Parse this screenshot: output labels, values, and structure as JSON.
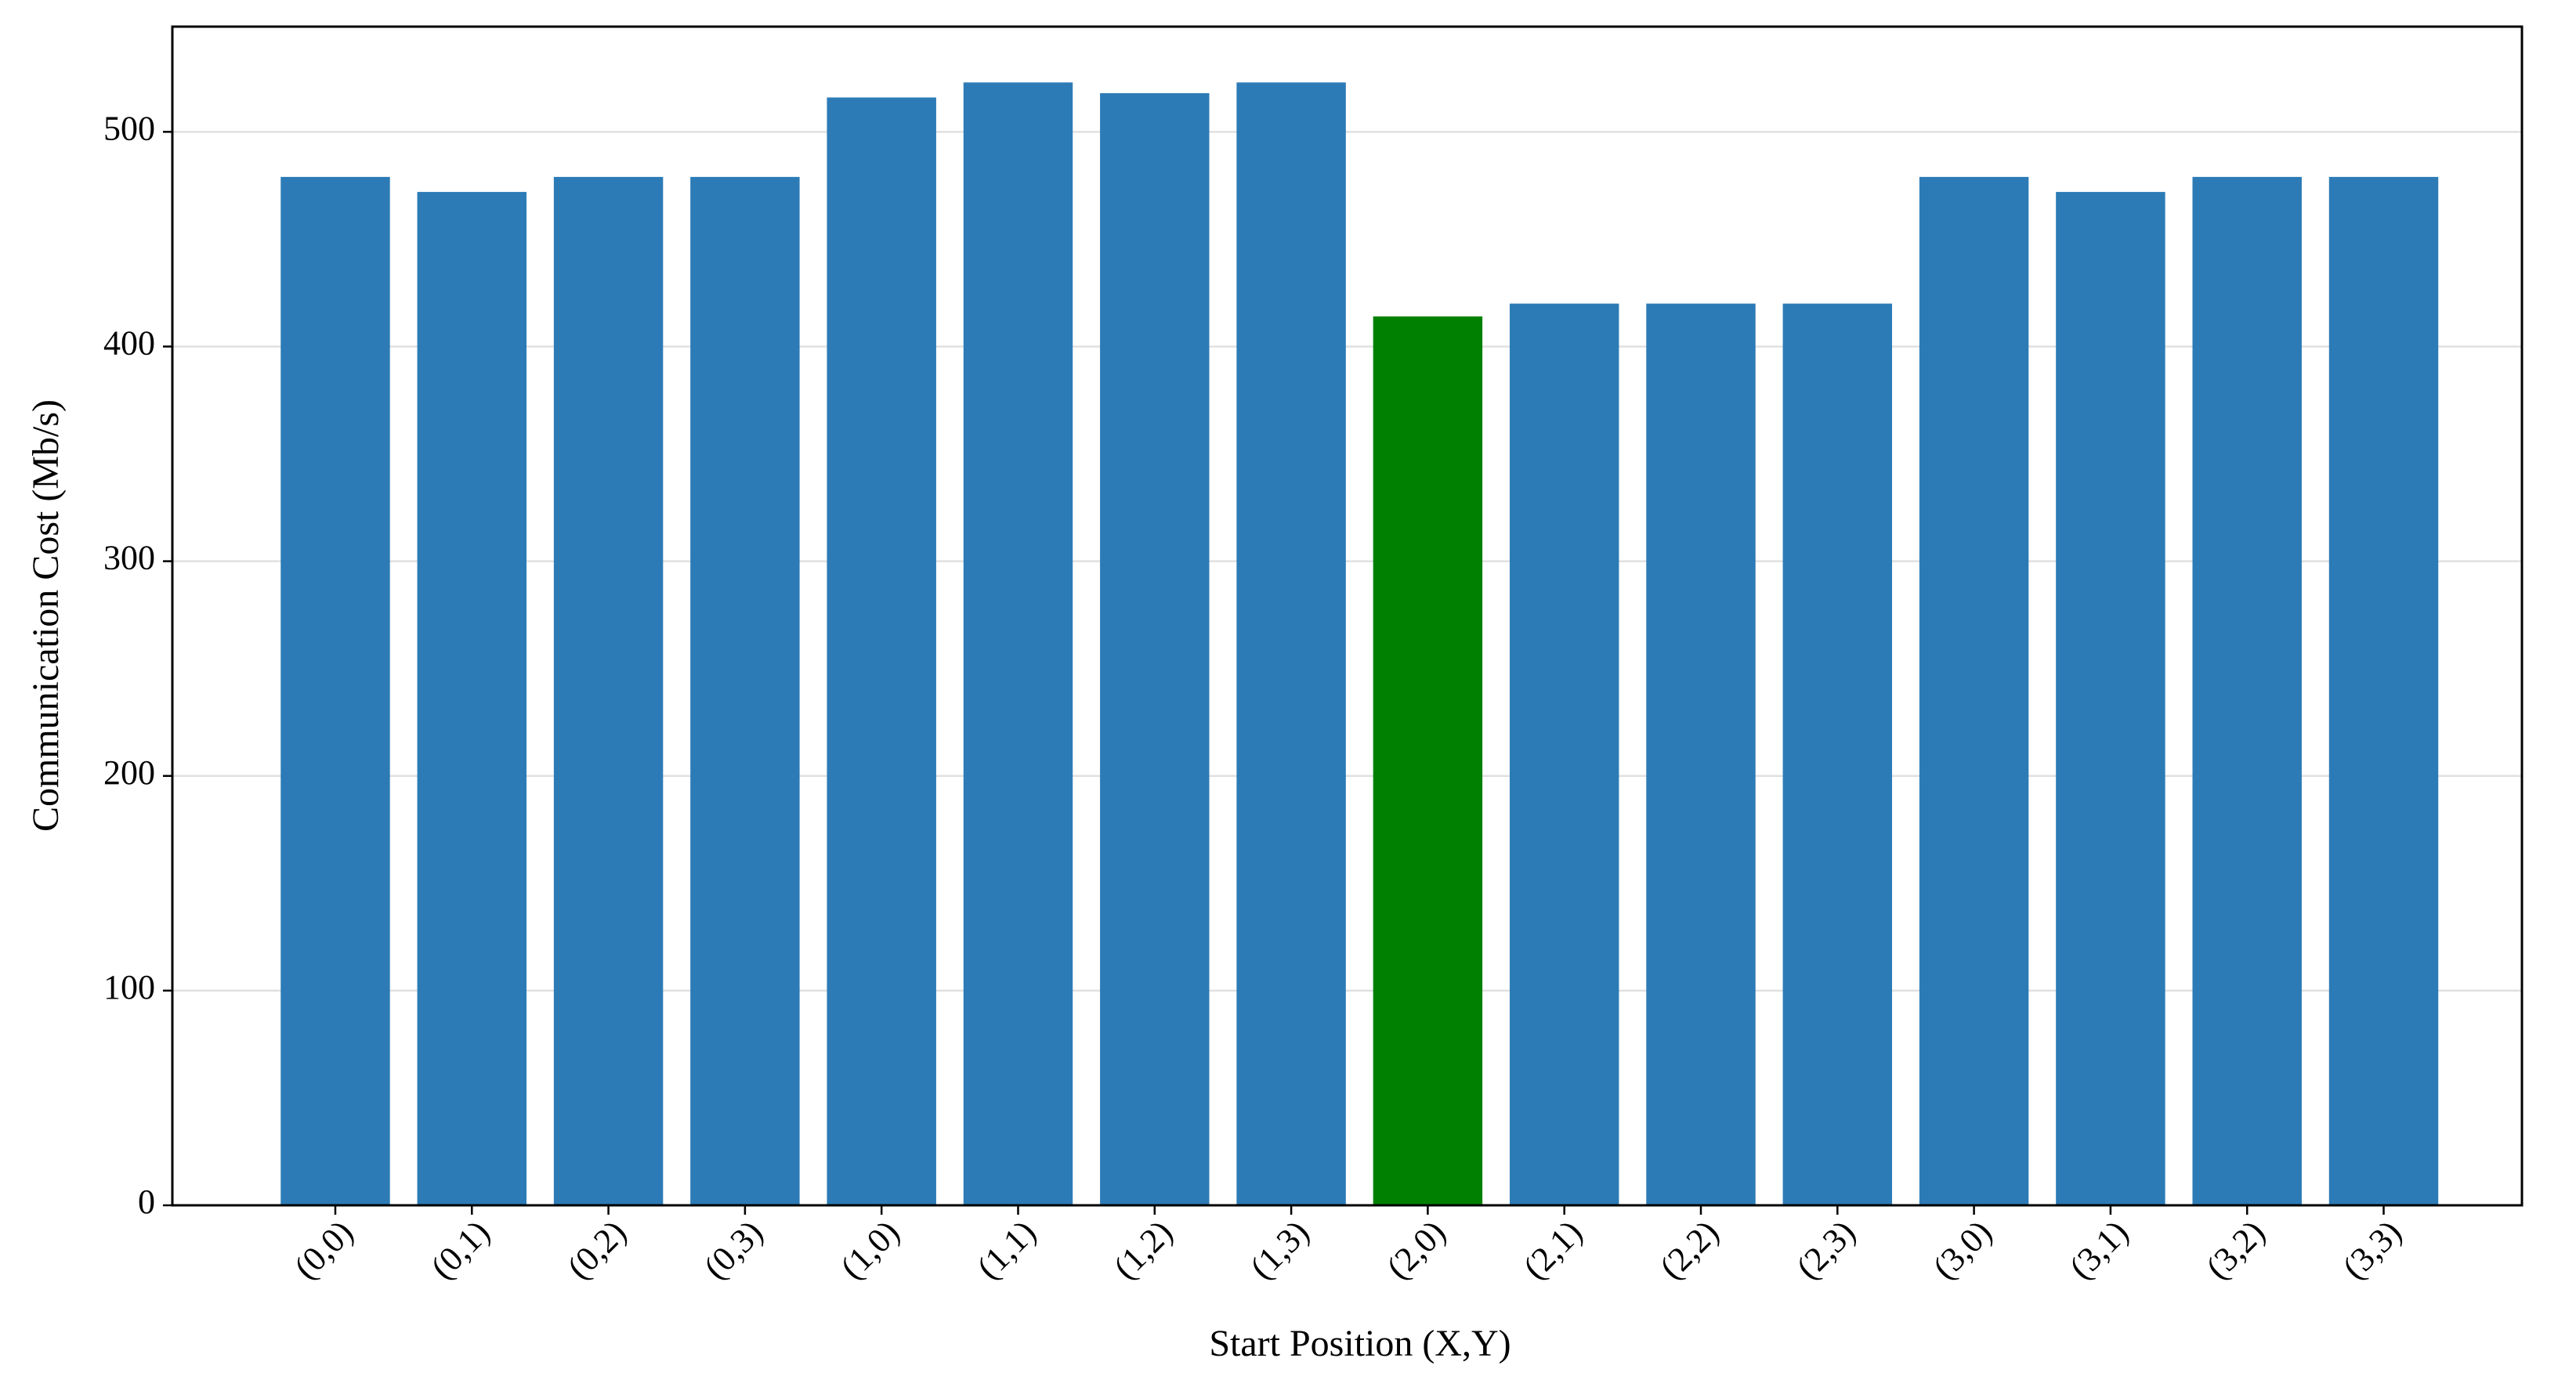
{
  "chart_data": {
    "type": "bar",
    "x_label": "Start Position (X,Y)",
    "y_label": "Communication Cost (Mb/s)",
    "categories": [
      "(0,0)",
      "(0,1)",
      "(0,2)",
      "(0,3)",
      "(1,0)",
      "(1,1)",
      "(1,2)",
      "(1,3)",
      "(2,0)",
      "(2,1)",
      "(2,2)",
      "(2,3)",
      "(3,0)",
      "(3,1)",
      "(3,2)",
      "(3,3)"
    ],
    "values": [
      479,
      472,
      479,
      479,
      516,
      523,
      518,
      523,
      414,
      420,
      420,
      420,
      479,
      472,
      479,
      479
    ],
    "colors": [
      "#2c7bb6",
      "#2c7bb6",
      "#2c7bb6",
      "#2c7bb6",
      "#2c7bb6",
      "#2c7bb6",
      "#2c7bb6",
      "#2c7bb6",
      "#008000",
      "#2c7bb6",
      "#2c7bb6",
      "#2c7bb6",
      "#2c7bb6",
      "#2c7bb6",
      "#2c7bb6",
      "#2c7bb6"
    ],
    "ylim": [
      0,
      549
    ],
    "yticks": [
      0,
      100,
      200,
      300,
      400,
      500
    ],
    "grid": true
  }
}
